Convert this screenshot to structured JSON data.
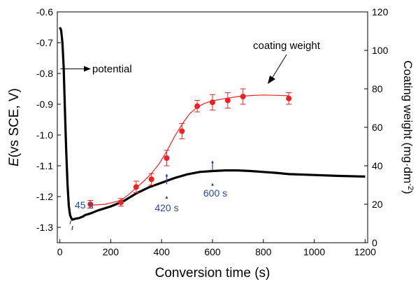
{
  "chart_data": {
    "type": "line",
    "xlabel": "Conversion time (s)",
    "ylabel_left": {
      "italic": "E",
      "rest": "(vs SCE, V)"
    },
    "ylabel_right": {
      "prefix": "Coating weight (mg·dm",
      "sup": "-2",
      "suffix": ")"
    },
    "xlim": [
      -10,
      1210
    ],
    "ylim_left": [
      -1.35,
      -0.6
    ],
    "ylim_right": [
      0,
      120
    ],
    "xticks": [
      0,
      200,
      400,
      600,
      800,
      1000,
      1200
    ],
    "xtick_labels": [
      "0",
      "200",
      "400",
      "600",
      "800",
      "1000",
      "1200"
    ],
    "yticks_left": [
      -0.6,
      -0.7,
      -0.8,
      -0.9,
      -1.0,
      -1.1,
      -1.2,
      -1.3
    ],
    "ytick_labels_left": [
      "-0.6",
      "-0.7",
      "-0.8",
      "-0.9",
      "-1.0",
      "-1.1",
      "-1.2",
      "-1.3"
    ],
    "yticks_right": [
      0,
      20,
      40,
      60,
      80,
      100,
      120
    ],
    "ytick_labels_right": [
      "0",
      "20",
      "40",
      "60",
      "80",
      "100",
      "120"
    ],
    "series": [
      {
        "name": "potential",
        "axis": "left",
        "color": "#000000",
        "x": [
          0,
          5,
          10,
          15,
          20,
          25,
          30,
          35,
          40,
          45,
          50,
          60,
          75,
          90,
          100,
          120,
          150,
          200,
          250,
          300,
          350,
          400,
          450,
          500,
          550,
          600,
          650,
          700,
          750,
          800,
          850,
          900,
          1000,
          1100,
          1200
        ],
        "y": [
          -0.65,
          -0.66,
          -0.7,
          -0.78,
          -0.92,
          -1.05,
          -1.16,
          -1.23,
          -1.26,
          -1.27,
          -1.275,
          -1.272,
          -1.27,
          -1.265,
          -1.26,
          -1.255,
          -1.245,
          -1.232,
          -1.215,
          -1.19,
          -1.17,
          -1.155,
          -1.14,
          -1.128,
          -1.12,
          -1.117,
          -1.115,
          -1.115,
          -1.117,
          -1.12,
          -1.123,
          -1.127,
          -1.13,
          -1.133,
          -1.135
        ]
      },
      {
        "name": "coating weight",
        "axis": "right",
        "color": "#ee2222",
        "x": [
          120,
          240,
          300,
          360,
          420,
          480,
          540,
          600,
          660,
          720,
          900
        ],
        "y": [
          20,
          21,
          29,
          33,
          44,
          58,
          71,
          73,
          74,
          76,
          75
        ],
        "err": [
          2,
          2,
          3,
          3,
          4,
          4,
          3,
          4,
          4,
          4,
          3
        ]
      }
    ],
    "fit_curve_x": [
      120,
      180,
      240,
      270,
      300,
      330,
      360,
      390,
      420,
      450,
      480,
      510,
      540,
      570,
      600,
      650,
      700,
      750,
      800,
      850,
      900
    ],
    "fit_curve_y": [
      19.5,
      20,
      22,
      25,
      28.5,
      32,
      36,
      41,
      47.5,
      55,
      61.5,
      67,
      70.5,
      72.5,
      73.8,
      75,
      76,
      76.5,
      76.8,
      76.6,
      76.4
    ],
    "annotations": {
      "potential_label": "potential",
      "coating_label": "coating weight",
      "time_markers": [
        {
          "label": "45 s",
          "x": 45
        },
        {
          "label": "420 s",
          "x": 420
        },
        {
          "label": "600 s",
          "x": 600
        }
      ]
    },
    "colors": {
      "potential": "#000000",
      "coating": "#ee2222",
      "markers": "#2a46a0"
    }
  }
}
